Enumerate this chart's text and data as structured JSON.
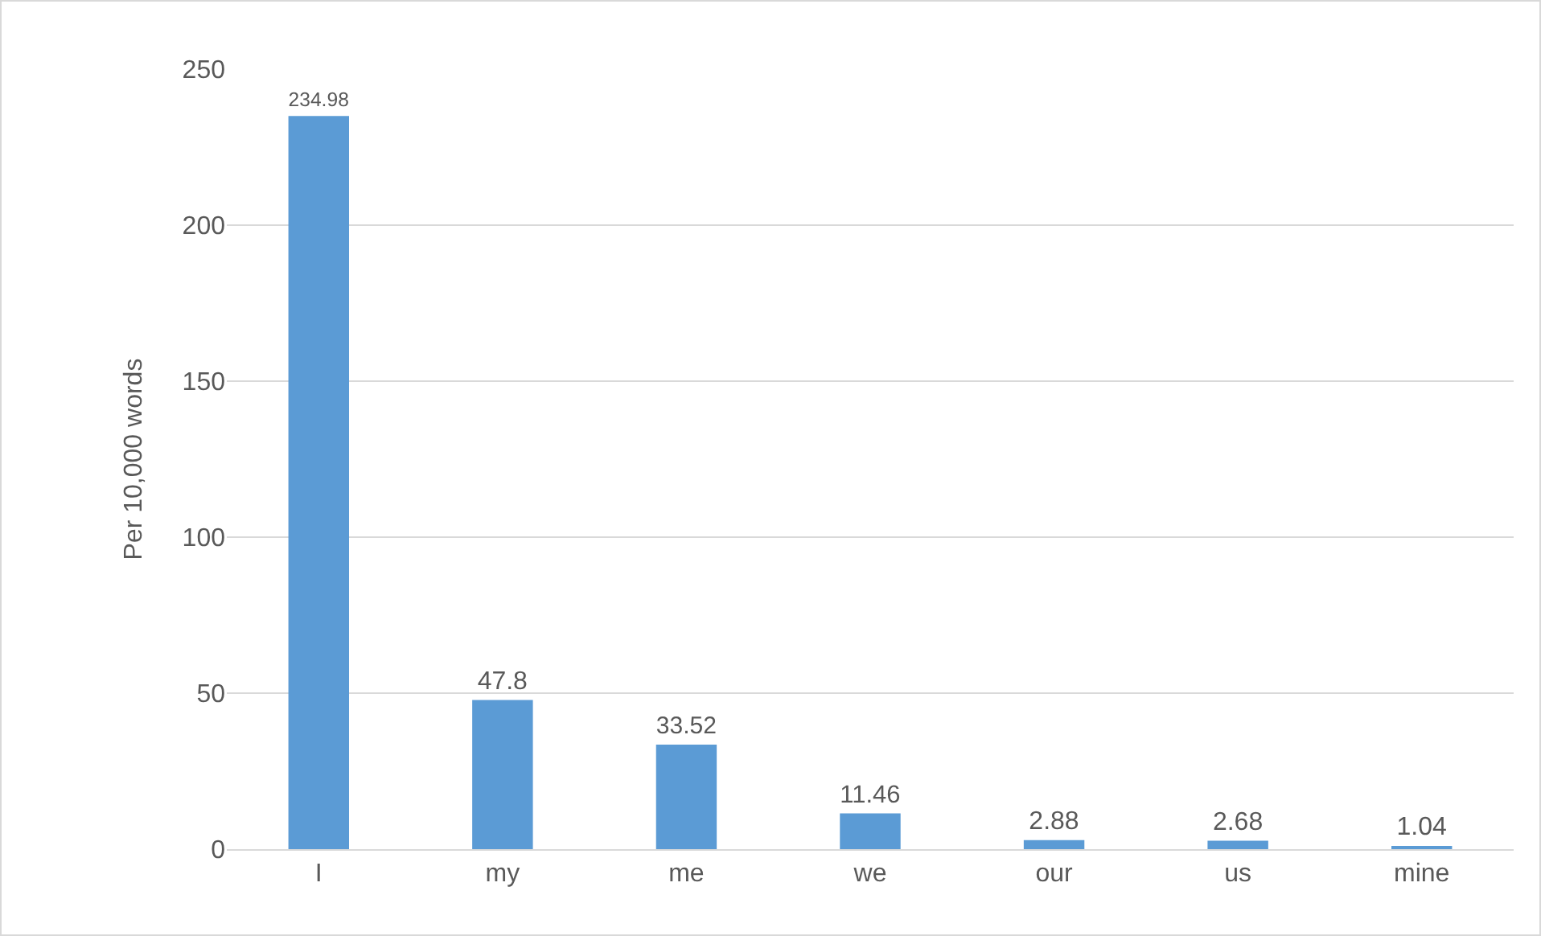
{
  "chart_data": {
    "type": "bar",
    "ylabel": "Per 10,000 words",
    "categories": [
      "I",
      "my",
      "me",
      "we",
      "our",
      "us",
      "mine"
    ],
    "values": [
      234.98,
      47.8,
      33.52,
      11.46,
      2.88,
      2.68,
      1.04
    ],
    "color": "#5b9bd5",
    "data_labels": true,
    "ylim": [
      0,
      250
    ],
    "yticks": [
      0,
      50,
      100,
      150,
      200,
      250
    ],
    "grid": "y",
    "legend": false
  }
}
